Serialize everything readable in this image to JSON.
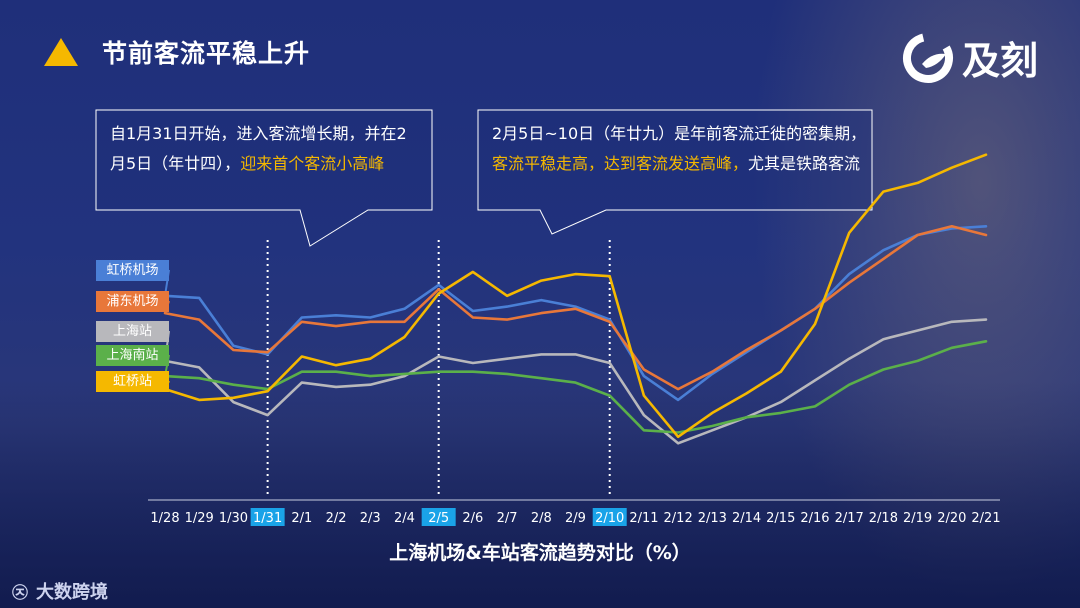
{
  "slide": {
    "title": "节前客流平稳上升",
    "axis_title": "上海机场&车站客流趋势对比（%）",
    "brand": "大数跨境",
    "brand_icon": "100-badge-icon",
    "logo_text": "及刻"
  },
  "callouts": [
    {
      "parts": [
        {
          "text": "自1月31日开始，进入客流增长期，并在2月5日（年廿四），",
          "highlight": false
        },
        {
          "text": "迎来首个客流小高峰",
          "highlight": true
        }
      ]
    },
    {
      "parts": [
        {
          "text": "2月5日~10日（年廿九）是年前客流迁徙的密集期，",
          "highlight": false
        },
        {
          "text": "客流平稳走高，达到客流发送高峰，",
          "highlight": true
        },
        {
          "text": "尤其是铁路客流",
          "highlight": false
        }
      ]
    }
  ],
  "chart_data": {
    "type": "line",
    "categories": [
      "1/28",
      "1/29",
      "1/30",
      "1/31",
      "2/1",
      "2/2",
      "2/3",
      "2/4",
      "2/5",
      "2/6",
      "2/7",
      "2/8",
      "2/9",
      "2/10",
      "2/11",
      "2/12",
      "2/13",
      "2/14",
      "2/15",
      "2/16",
      "2/17",
      "2/18",
      "2/19",
      "2/20",
      "2/21"
    ],
    "highlighted_categories": [
      "1/31",
      "2/5",
      "2/10"
    ],
    "series": [
      {
        "name": "虹桥机场",
        "color": "#4a7fd6",
        "values": [
          72,
          71,
          49,
          45,
          62,
          63,
          62,
          66,
          77,
          65,
          67,
          70,
          67,
          61,
          35,
          24,
          36,
          46,
          56,
          66,
          82,
          93,
          100,
          103,
          104
        ]
      },
      {
        "name": "浦东机场",
        "color": "#e8773a",
        "values": [
          64,
          61,
          47,
          46,
          60,
          58,
          60,
          60,
          75,
          62,
          61,
          64,
          66,
          60,
          38,
          29,
          37,
          47,
          56,
          66,
          78,
          89,
          100,
          104,
          100
        ]
      },
      {
        "name": "上海站",
        "color": "#b8b8bc",
        "values": [
          42,
          39,
          23,
          17,
          32,
          30,
          31,
          35,
          44,
          41,
          43,
          45,
          45,
          41,
          17,
          4,
          10,
          16,
          23,
          33,
          43,
          52,
          56,
          60,
          61
        ]
      },
      {
        "name": "上海南站",
        "color": "#5bb04a",
        "values": [
          35,
          34,
          31,
          29,
          37,
          37,
          35,
          36,
          37,
          37,
          36,
          34,
          32,
          26,
          10,
          9,
          12,
          16,
          18,
          21,
          31,
          38,
          42,
          48,
          51
        ]
      },
      {
        "name": "虹桥站",
        "color": "#f5b800",
        "values": [
          29,
          24,
          25,
          28,
          44,
          40,
          43,
          53,
          73,
          83,
          72,
          79,
          82,
          81,
          26,
          7,
          18,
          27,
          37,
          59,
          101,
          120,
          124,
          131,
          137
        ]
      }
    ]
  }
}
